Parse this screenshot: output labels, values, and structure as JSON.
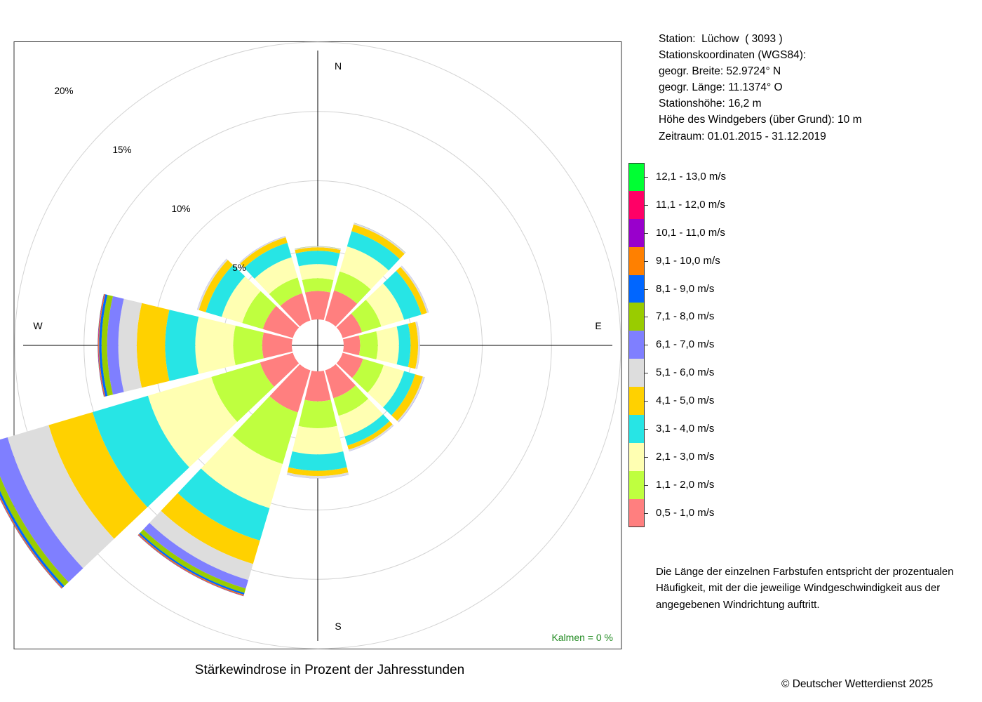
{
  "chart_data": {
    "type": "windrose",
    "title": "Stärkewindrose in Prozent der Jahresstunden",
    "direction_labels": [
      "N",
      "E",
      "S",
      "W"
    ],
    "ring_labels": [
      "5%",
      "10%",
      "15%",
      "20%"
    ],
    "rings": [
      5,
      10,
      15,
      20
    ],
    "calms_label": "Kalmen  =  0 %",
    "sectors": [
      "N",
      "NNE",
      "ENE",
      "E",
      "ESE",
      "SSE",
      "S",
      "SSW",
      "WSW",
      "W",
      "WNW",
      "NNW"
    ],
    "sector_angles_deg": [
      0,
      30,
      60,
      90,
      120,
      150,
      180,
      210,
      240,
      270,
      300,
      330
    ],
    "speed_classes": [
      {
        "label": "0,5 - 1,0 m/s",
        "color": "#FF7F7F"
      },
      {
        "label": "1,1 - 2,0 m/s",
        "color": "#BFFF3F"
      },
      {
        "label": "2,1 - 3,0 m/s",
        "color": "#FFFFB2"
      },
      {
        "label": "3,1 - 4,0 m/s",
        "color": "#27E5E5"
      },
      {
        "label": "4,1 - 5,0 m/s",
        "color": "#FFD100"
      },
      {
        "label": "5,1 - 6,0 m/s",
        "color": "#DDDDDD"
      },
      {
        "label": "6,1 - 7,0 m/s",
        "color": "#7F7FFF"
      },
      {
        "label": "7,1 - 8,0 m/s",
        "color": "#99CC00"
      },
      {
        "label": "8,1 - 9,0 m/s",
        "color": "#0066FF"
      },
      {
        "label": "9,1 - 10,0 m/s",
        "color": "#FF8000"
      },
      {
        "label": "10,1 - 11,0 m/s",
        "color": "#9900CC"
      },
      {
        "label": "11,1 - 12,0 m/s",
        "color": "#FF0066"
      },
      {
        "label": "12,1 - 13,0 m/s",
        "color": "#00FF33"
      }
    ],
    "cumulative_percent": [
      [
        2.05,
        2.97,
        3.99,
        4.95,
        5.2,
        5.26,
        5.27,
        5.28,
        5.28,
        5.28,
        5.28,
        5.28,
        5.28
      ],
      [
        2.26,
        3.69,
        5.57,
        6.72,
        7.23,
        7.33,
        7.34,
        7.35,
        7.35,
        7.35,
        7.35,
        7.35,
        7.35
      ],
      [
        1.46,
        2.91,
        4.63,
        5.93,
        6.35,
        6.47,
        6.48,
        6.48,
        6.48,
        6.48,
        6.48,
        6.48,
        6.48
      ],
      [
        1.19,
        2.47,
        3.99,
        4.83,
        5.37,
        5.5,
        5.51,
        5.51,
        5.51,
        5.51,
        5.51,
        5.51,
        5.51
      ],
      [
        1.54,
        3.09,
        4.63,
        5.46,
        6.04,
        6.16,
        6.18,
        6.18,
        6.18,
        6.18,
        6.18,
        6.18,
        6.18
      ],
      [
        2.1,
        3.43,
        4.98,
        5.66,
        5.97,
        6.09,
        6.1,
        6.1,
        6.1,
        6.1,
        6.1,
        6.1,
        6.1
      ],
      [
        2.16,
        4.1,
        5.99,
        7.17,
        7.55,
        7.71,
        7.72,
        7.72,
        7.72,
        7.72,
        7.72,
        7.72,
        7.72
      ],
      [
        3.17,
        7.05,
        10.37,
        12.81,
        14.57,
        15.78,
        16.42,
        16.75,
        16.88,
        16.95,
        16.98,
        16.99,
        17.0
      ],
      [
        2.47,
        6.14,
        10.91,
        15.08,
        18.39,
        21.48,
        22.93,
        23.34,
        23.51,
        23.57,
        23.6,
        23.61,
        23.62
      ],
      [
        2.14,
        4.23,
        6.97,
        9.14,
        11.19,
        12.52,
        13.33,
        13.73,
        13.9,
        13.96,
        13.99,
        14.0,
        14.01
      ],
      [
        2.26,
        3.81,
        5.36,
        6.56,
        7.08,
        7.2,
        7.21,
        7.21,
        7.21,
        7.21,
        7.21,
        7.21,
        7.21
      ],
      [
        2.05,
        3.23,
        4.76,
        5.84,
        6.26,
        6.34,
        6.35,
        6.35,
        6.35,
        6.35,
        6.35,
        6.35,
        6.35
      ]
    ]
  },
  "station": {
    "lines": [
      "Station:  Lüchow  ( 3093 )",
      "Stationskoordinaten (WGS84):",
      "geogr. Breite: 52.9724° N",
      "geogr. Länge: 11.1374° O",
      "Stationshöhe: 16,2 m",
      "Höhe des Windgebers (über Grund): 10 m",
      "Zeitraum: 01.01.2015 - 31.12.2019"
    ]
  },
  "note": {
    "lines": [
      "Die Länge der einzelnen Farbstufen entspricht der prozentualen",
      "Häufigkeit, mit der die jeweilige Windgeschwindigkeit aus der",
      "angegebenen Windrichtung auftritt."
    ]
  },
  "copyright": "© Deutscher Wetterdienst  2025",
  "colors": {
    "calms_text": "#228B22",
    "grid": "#D3D3D3",
    "axes": "#000000"
  }
}
